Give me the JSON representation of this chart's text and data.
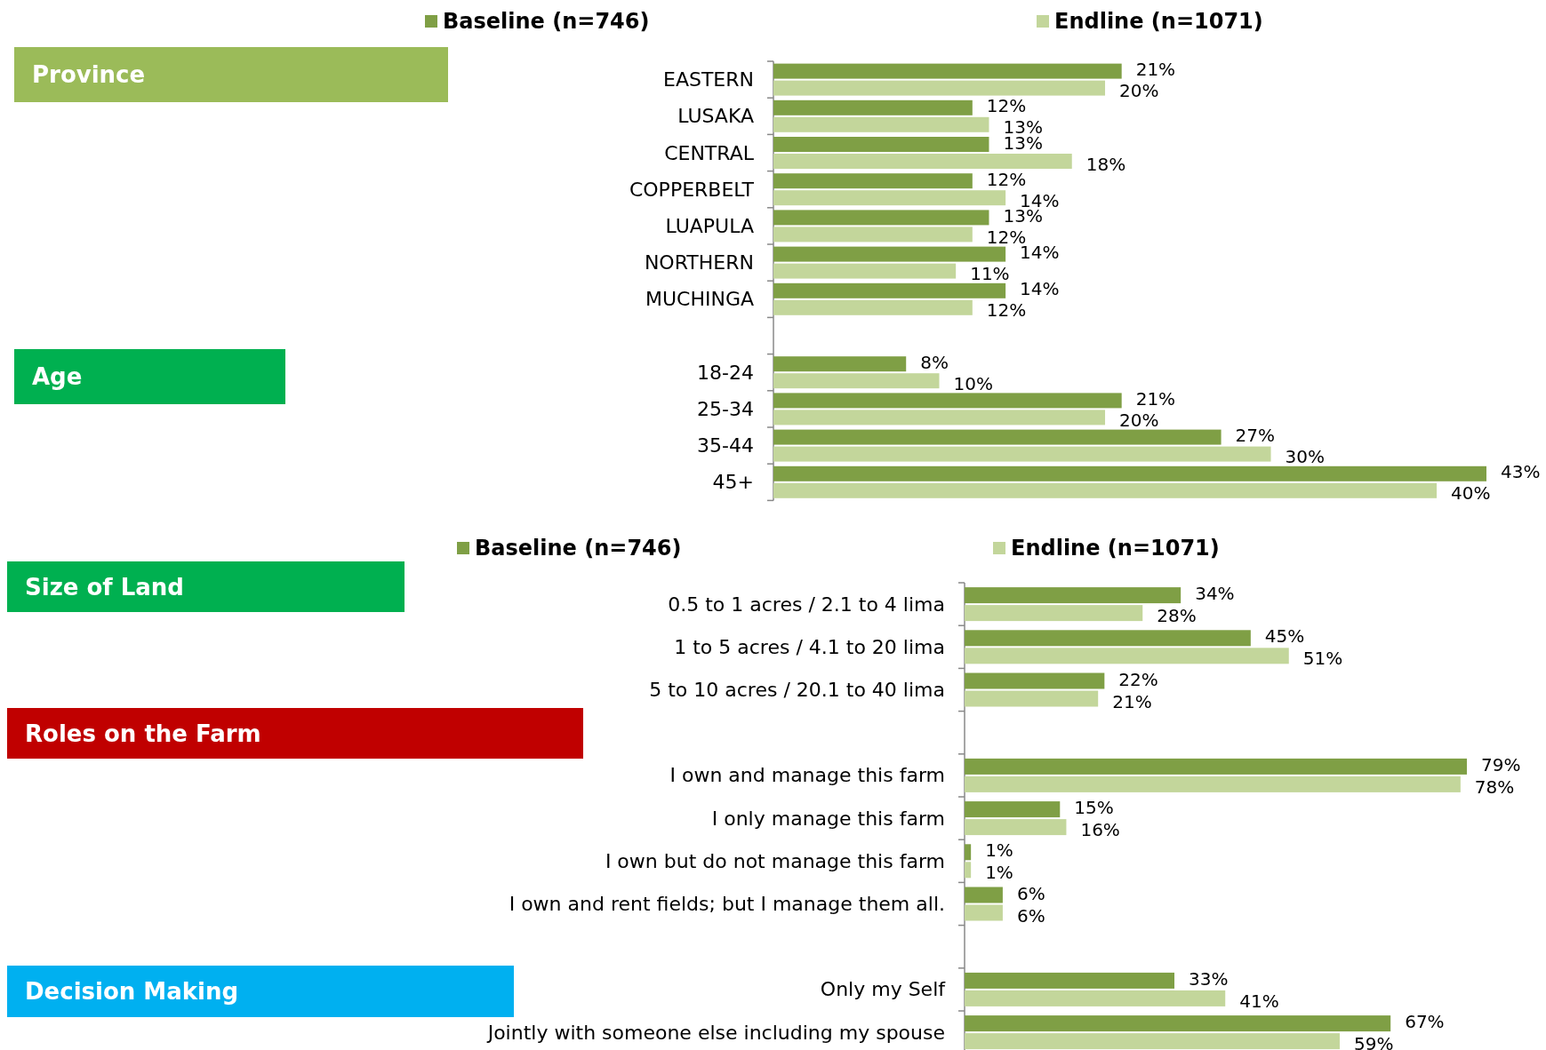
{
  "chart_data": [
    {
      "type": "bar",
      "orientation": "horizontal",
      "legend": "top",
      "annotations": [
        "Province",
        "Age"
      ],
      "categories": [
        "EASTERN",
        "LUSAKA",
        "CENTRAL",
        "COPPERBELT",
        "LUAPULA",
        "NORTHERN",
        "MUCHINGA",
        null,
        "18-24",
        "25-34",
        "35-44",
        "45+"
      ],
      "series": [
        {
          "name": "Baseline (n=746)",
          "color": "#7f9f45",
          "values": [
            21,
            12,
            13,
            12,
            13,
            14,
            14,
            null,
            8,
            21,
            27,
            43
          ],
          "value_labels": [
            "21%",
            "12%",
            "13%",
            "12%",
            "13%",
            "14%",
            "14%",
            null,
            "8%",
            "21%",
            "27%",
            "43%"
          ]
        },
        {
          "name": "Endline (n=1071)",
          "color": "#c3d69b",
          "values": [
            20,
            13,
            18,
            14,
            12,
            11,
            12,
            null,
            10,
            20,
            30,
            40
          ],
          "value_labels": [
            "20%",
            "13%",
            "18%",
            "14%",
            "12%",
            "11%",
            "12%",
            null,
            "10%",
            "20%",
            "30%",
            "40%"
          ]
        }
      ]
    },
    {
      "type": "bar",
      "orientation": "horizontal",
      "legend": "top",
      "annotations": [
        "Size of Land",
        "Roles on the Farm",
        "Decision Making"
      ],
      "categories": [
        "0.5 to 1 acres / 2.1 to 4 lima",
        "1 to 5 acres / 4.1 to 20 lima",
        "5 to 10 acres / 20.1 to 40 lima",
        null,
        "I own and manage this farm",
        "I only manage this farm",
        "I own but do not manage this farm",
        "I own and rent fields; but I manage them all.",
        null,
        "Only my Self",
        "Jointly with someone else including my spouse"
      ],
      "series": [
        {
          "name": "Baseline (n=746)",
          "color": "#7f9f45",
          "values": [
            34,
            45,
            22,
            null,
            79,
            15,
            1,
            6,
            null,
            33,
            67
          ],
          "value_labels": [
            "34%",
            "45%",
            "22%",
            null,
            "79%",
            "15%",
            "1%",
            "6%",
            null,
            "33%",
            "67%"
          ]
        },
        {
          "name": "Endline (n=1071)",
          "color": "#c3d69b",
          "values": [
            28,
            51,
            21,
            null,
            78,
            16,
            1,
            6,
            null,
            41,
            59
          ],
          "value_labels": [
            "28%",
            "51%",
            "21%",
            null,
            "78%",
            "16%",
            "1%",
            "6%",
            null,
            "41%",
            "59%"
          ]
        }
      ]
    }
  ]
}
